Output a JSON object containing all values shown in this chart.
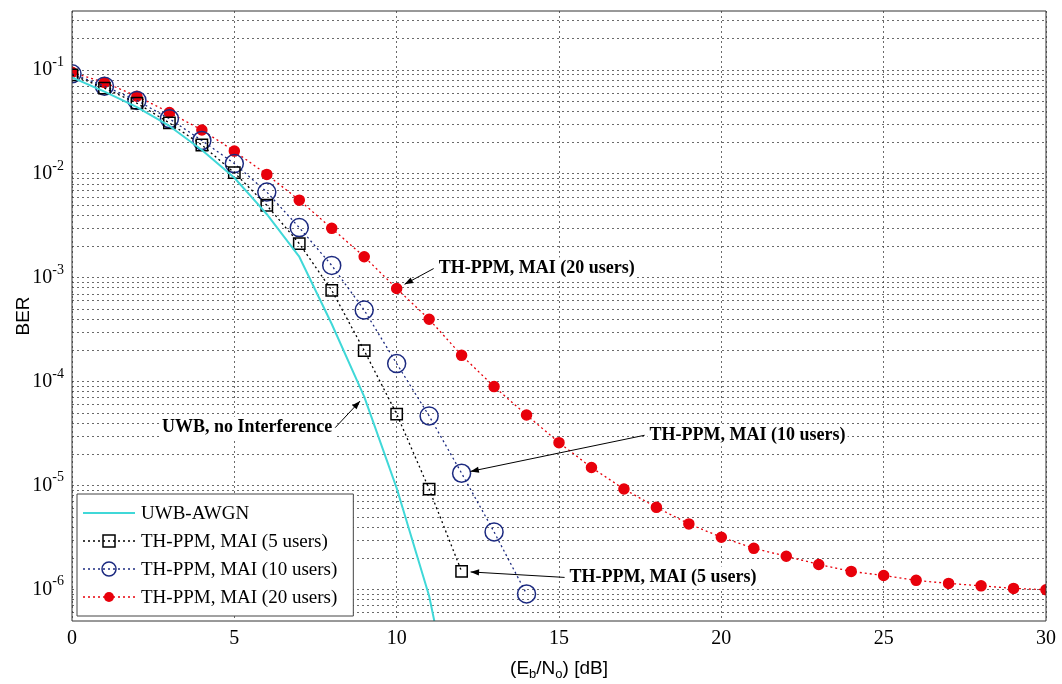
{
  "chart_data": {
    "type": "line",
    "xlabel": "(E$_{b}$/N$_{o}$) [dB]",
    "ylabel": "BER",
    "log": "y",
    "grid": true,
    "legend": "bottom left",
    "xlim": [
      0,
      30
    ],
    "xticks": [
      0,
      5,
      10,
      15,
      20,
      25,
      30
    ],
    "ylim": [
      5e-07,
      0.37
    ],
    "yticks": [
      {
        "value": 6e-07,
        "label": null
      },
      {
        "value": 7e-07,
        "label": null
      },
      {
        "value": 8e-07,
        "label": null
      },
      {
        "value": 9e-07,
        "label": null
      },
      {
        "value": 1e-06,
        "label": "10$^{-6}$"
      },
      {
        "value": 2e-06,
        "label": null
      },
      {
        "value": 3e-06,
        "label": null
      },
      {
        "value": 4e-06,
        "label": null
      },
      {
        "value": 5e-06,
        "label": null
      },
      {
        "value": 6e-06,
        "label": null
      },
      {
        "value": 7e-06,
        "label": null
      },
      {
        "value": 8e-06,
        "label": null
      },
      {
        "value": 9e-06,
        "label": null
      },
      {
        "value": 1e-05,
        "label": "10$^{-5}$"
      },
      {
        "value": 2e-05,
        "label": null
      },
      {
        "value": 3e-05,
        "label": null
      },
      {
        "value": 4e-05,
        "label": null
      },
      {
        "value": 5e-05,
        "label": null
      },
      {
        "value": 6e-05,
        "label": null
      },
      {
        "value": 7e-05,
        "label": null
      },
      {
        "value": 8e-05,
        "label": null
      },
      {
        "value": 9e-05,
        "label": null
      },
      {
        "value": 0.0001,
        "label": "10$^{-4}$"
      },
      {
        "value": 0.0002,
        "label": null
      },
      {
        "value": 0.0003,
        "label": null
      },
      {
        "value": 0.0004,
        "label": null
      },
      {
        "value": 0.0005,
        "label": null
      },
      {
        "value": 0.0006,
        "label": null
      },
      {
        "value": 0.0007,
        "label": null
      },
      {
        "value": 0.0008,
        "label": null
      },
      {
        "value": 0.0009,
        "label": null
      },
      {
        "value": 0.001,
        "label": "10$^{-3}$"
      },
      {
        "value": 0.002,
        "label": null
      },
      {
        "value": 0.003,
        "label": null
      },
      {
        "value": 0.004,
        "label": null
      },
      {
        "value": 0.005,
        "label": null
      },
      {
        "value": 0.006,
        "label": null
      },
      {
        "value": 0.007,
        "label": null
      },
      {
        "value": 0.008,
        "label": null
      },
      {
        "value": 0.009,
        "label": null
      },
      {
        "value": 0.01,
        "label": "10$^{-2}$"
      },
      {
        "value": 0.02,
        "label": null
      },
      {
        "value": 0.03,
        "label": null
      },
      {
        "value": 0.04,
        "label": null
      },
      {
        "value": 0.05,
        "label": null
      },
      {
        "value": 0.06,
        "label": null
      },
      {
        "value": 0.07,
        "label": null
      },
      {
        "value": 0.08,
        "label": null
      },
      {
        "value": 0.09,
        "label": null
      },
      {
        "value": 0.1,
        "label": "10$^{-1}$"
      },
      {
        "value": 0.2,
        "label": null
      },
      {
        "value": 0.3,
        "label": null
      }
    ],
    "series": [
      {
        "name": "UWB-AWGN",
        "color": "#40d8d8",
        "marker": "none",
        "line_style": "solid",
        "x": [
          0,
          1,
          2,
          3,
          4,
          5,
          6,
          7,
          8,
          9,
          10,
          11,
          11.16
        ],
        "values": [
          0.085,
          0.062,
          0.044,
          0.029,
          0.017,
          0.0092,
          0.0041,
          0.0016,
          0.00036,
          7.2e-05,
          9.5e-06,
          8.7e-07,
          5e-07
        ]
      },
      {
        "name": "TH-PPM, MAI (5 users)",
        "color": "#000000",
        "marker": "square",
        "line_style": "dotted",
        "x": [
          0,
          1,
          2,
          3,
          4,
          5,
          6,
          7,
          8,
          9,
          10,
          11,
          12
        ],
        "values": [
          0.09,
          0.067,
          0.048,
          0.031,
          0.019,
          0.0103,
          0.005,
          0.00214,
          0.00076,
          0.0002,
          4.9e-05,
          9.3e-06,
          1.5e-06
        ]
      },
      {
        "name": "TH-PPM, MAI (10 users)",
        "color": "#1c2a80",
        "marker": "circle",
        "line_style": "dotted",
        "x": [
          0,
          1,
          2,
          3,
          4,
          5,
          6,
          7,
          8,
          9,
          10,
          11,
          12,
          13,
          14
        ],
        "values": [
          0.092,
          0.07,
          0.051,
          0.034,
          0.021,
          0.0126,
          0.0067,
          0.00305,
          0.00132,
          0.00049,
          0.00015,
          4.7e-05,
          1.32e-05,
          3.6e-06,
          9.1e-07
        ]
      },
      {
        "name": "TH-PPM, MAI (20 users)",
        "color": "#e8000b",
        "marker": "filled_circle",
        "line_style": "dotted",
        "x": [
          0,
          1,
          2,
          3,
          4,
          5,
          6,
          7,
          8,
          9,
          10,
          11,
          12,
          13,
          14,
          15,
          16,
          17,
          18,
          19,
          20,
          21,
          22,
          23,
          24,
          25,
          26,
          27,
          28,
          29,
          30
        ],
        "values": [
          0.095,
          0.076,
          0.056,
          0.039,
          0.0265,
          0.0166,
          0.0099,
          0.0056,
          0.003,
          0.0016,
          0.00079,
          0.0004,
          0.00018,
          9e-05,
          4.8e-05,
          2.6e-05,
          1.5e-05,
          9.3e-06,
          6.2e-06,
          4.3e-06,
          3.2e-06,
          2.5e-06,
          2.1e-06,
          1.75e-06,
          1.5e-06,
          1.37e-06,
          1.23e-06,
          1.15e-06,
          1.09e-06,
          1.03e-06,
          1e-06
        ]
      }
    ],
    "annotations": [
      {
        "text": "TH-PPM, MAI (20 users)",
        "x": 10,
        "y": 0.00079
      },
      {
        "text": "UWB, no Interference",
        "x": 9,
        "y": 7.2e-05
      },
      {
        "text": "TH-PPM, MAI (10 users)",
        "x": 12,
        "y": 1.32e-05
      },
      {
        "text": "TH-PPM, MAI (5 users)",
        "x": 12,
        "y": 1.5e-06
      }
    ]
  }
}
